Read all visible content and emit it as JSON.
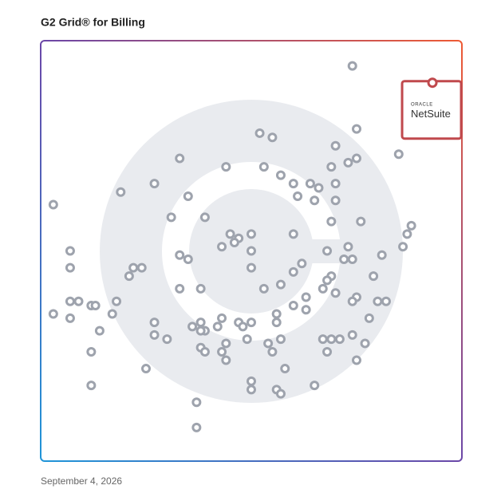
{
  "chart_data": {
    "type": "scatter",
    "title": "G2 Grid® for Billing",
    "date": "September 4, 2026",
    "xlim": [
      0,
      100
    ],
    "ylim": [
      0,
      100
    ],
    "color": "#9ea3ad",
    "x": [
      74,
      75,
      52,
      55,
      70,
      85,
      33,
      75,
      73,
      53,
      44,
      69,
      57,
      70,
      27,
      60,
      64,
      66,
      19,
      61,
      35,
      65,
      70,
      3,
      31,
      39,
      69,
      76,
      88,
      60,
      45,
      47,
      50,
      87,
      46,
      43,
      73,
      86,
      68,
      50,
      7,
      33,
      35,
      72,
      74,
      81,
      62,
      22,
      24,
      7,
      50,
      60,
      21,
      79,
      69,
      68,
      57,
      67,
      70,
      33,
      38,
      53,
      63,
      75,
      7,
      9,
      74,
      80,
      82,
      18,
      12,
      13,
      60,
      63,
      17,
      3,
      7,
      56,
      27,
      38,
      43,
      47,
      56,
      78,
      36,
      39,
      42,
      48,
      50,
      14,
      27,
      30,
      38,
      49,
      57,
      74,
      67,
      69,
      71,
      54,
      77,
      55,
      38,
      44,
      43,
      39,
      12,
      68,
      44,
      75,
      25,
      58,
      50,
      12,
      65,
      50,
      56,
      57,
      37,
      37
    ],
    "y": [
      94,
      79,
      78,
      77,
      75,
      73,
      72,
      72,
      71,
      70,
      70,
      70,
      68,
      66,
      66,
      66,
      66,
      65,
      64,
      63,
      63,
      62,
      62,
      61,
      58,
      58,
      57,
      57,
      56,
      54,
      54,
      53,
      54,
      54,
      52,
      51,
      51,
      51,
      50,
      50,
      50,
      49,
      48,
      48,
      48,
      49,
      47,
      46,
      46,
      46,
      46,
      45,
      44,
      44,
      44,
      43,
      42,
      41,
      40,
      41,
      41,
      41,
      39,
      39,
      38,
      38,
      38,
      38,
      38,
      38,
      37,
      37,
      37,
      36,
      35,
      35,
      34,
      35,
      33,
      33,
      34,
      33,
      33,
      34,
      32,
      31,
      32,
      32,
      33,
      31,
      30,
      29,
      31,
      29,
      29,
      30,
      29,
      29,
      29,
      28,
      28,
      26,
      27,
      28,
      26,
      26,
      26,
      26,
      24,
      24,
      22,
      22,
      19,
      18,
      18,
      17,
      17,
      16,
      14,
      8
    ],
    "highlight": {
      "brand": "ORACLE",
      "label": "NetSuite",
      "x": 93,
      "y": 90,
      "color": "#c0494d"
    }
  }
}
